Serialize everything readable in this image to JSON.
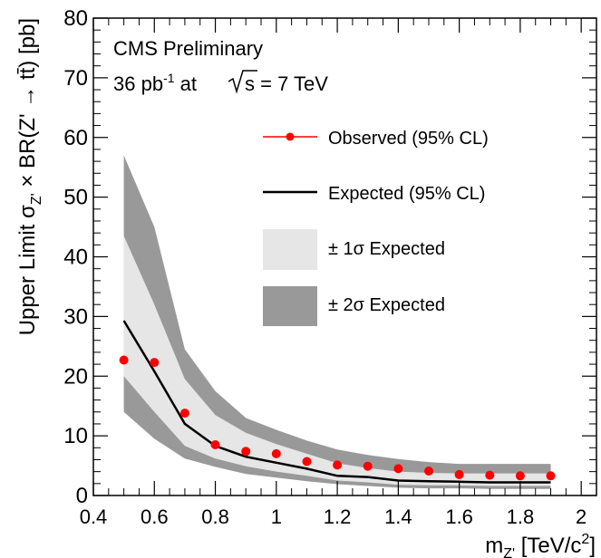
{
  "chart_data": {
    "type": "line",
    "header": {
      "line1": "CMS Preliminary",
      "line2_prefix": "36 pb",
      "line2_sup": "-1",
      "line2_mid": " at ",
      "line2_sqrt": "s",
      "line2_suffix": " = 7 TeV"
    },
    "ylabel": {
      "main": "Upper Limit σ",
      "sub": "Z'",
      "rest": " × BR(Z' → tt̄) [pb]"
    },
    "xlabel": {
      "main": "m",
      "sub": "Z'",
      "rest": " [TeV/c",
      "sup": "2",
      "close": "]"
    },
    "xlim": [
      0.4,
      2.05
    ],
    "ylim": [
      0,
      80
    ],
    "xticks": [
      0.4,
      0.6,
      0.8,
      1,
      1.2,
      1.4,
      1.6,
      1.8,
      2
    ],
    "xtick_labels": [
      "0.4",
      "0.6",
      "0.8",
      "1",
      "1.2",
      "1.4",
      "1.6",
      "1.8",
      "2"
    ],
    "yticks": [
      0,
      10,
      20,
      30,
      40,
      50,
      60,
      70,
      80
    ],
    "ytick_labels": [
      "0",
      "10",
      "20",
      "30",
      "40",
      "50",
      "60",
      "70",
      "80"
    ],
    "x": [
      0.5,
      0.6,
      0.7,
      0.8,
      0.9,
      1.0,
      1.1,
      1.2,
      1.3,
      1.4,
      1.5,
      1.6,
      1.7,
      1.8,
      1.9
    ],
    "series": [
      {
        "name": "Observed (95% CL)",
        "style": "points",
        "color": "#ff0000",
        "values": [
          22.7,
          22.3,
          13.8,
          8.5,
          7.4,
          7.0,
          5.7,
          5.1,
          4.9,
          4.5,
          4.1,
          3.5,
          3.4,
          3.3,
          3.3
        ]
      },
      {
        "name": "Expected (95% CL)",
        "style": "line",
        "color": "#000000",
        "values": [
          29.3,
          20.8,
          12.0,
          8.3,
          6.5,
          5.5,
          4.5,
          3.3,
          3.1,
          2.5,
          2.4,
          2.3,
          2.2,
          2.2,
          2.2
        ]
      }
    ],
    "bands": [
      {
        "name": "± 2σ Expected",
        "label_prefix": "± 2",
        "label_sigma": "σ",
        "label_suffix": " Expected",
        "color": "#999999",
        "upper": [
          57.0,
          45.0,
          24.5,
          17.5,
          13.0,
          11.0,
          9.2,
          7.7,
          6.8,
          6.1,
          5.6,
          5.3,
          5.3,
          5.3,
          5.3
        ],
        "lower": [
          14.0,
          9.5,
          6.2,
          4.8,
          3.6,
          3.0,
          2.4,
          1.9,
          1.6,
          1.3,
          1.2,
          1.2,
          1.1,
          1.1,
          1.1
        ]
      },
      {
        "name": "± 1σ Expected",
        "label_prefix": "± 1",
        "label_sigma": "σ",
        "label_suffix": " Expected",
        "color": "#e6e6e6",
        "upper": [
          43.5,
          32.0,
          19.5,
          13.5,
          10.5,
          8.6,
          7.0,
          5.4,
          4.6,
          4.0,
          3.8,
          3.7,
          3.7,
          3.7,
          3.7
        ],
        "lower": [
          20.0,
          14.0,
          8.3,
          6.2,
          4.9,
          4.0,
          3.3,
          2.5,
          2.2,
          1.8,
          1.7,
          1.7,
          1.6,
          1.6,
          1.6
        ]
      }
    ],
    "legend": {
      "placement": "top-right",
      "entries": [
        "Observed (95% CL)",
        "Expected (95% CL)",
        "± 1σ Expected",
        "± 2σ Expected"
      ]
    },
    "grid": false
  }
}
